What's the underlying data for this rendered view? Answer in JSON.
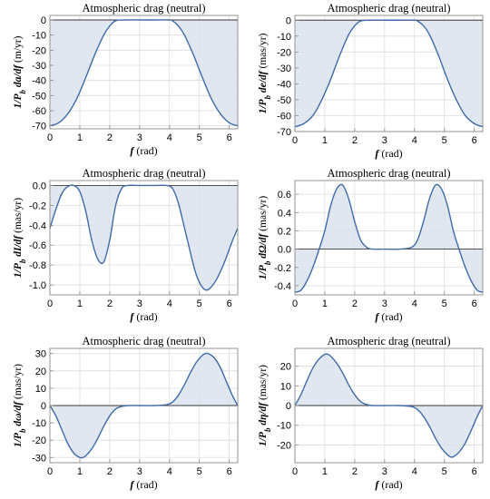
{
  "chart_data": [
    {
      "type": "area",
      "title": "Atmospheric drag (neutral)",
      "xlabel": {
        "symbol": "f",
        "unit": "(rad)"
      },
      "ylabel": {
        "prefix": "1/P",
        "sub": "b",
        "expr": " da/df",
        "unit": " (m/yr)"
      },
      "xlim": [
        0,
        6.2832
      ],
      "ylim": [
        -72,
        3
      ],
      "xticks": [
        0,
        1,
        2,
        3,
        4,
        5,
        6
      ],
      "yticks": [
        0,
        -10,
        -20,
        -30,
        -40,
        -50,
        -60,
        -70
      ],
      "grid": true,
      "series": [
        {
          "x": [
            0,
            0.3,
            0.6,
            0.9,
            1.2,
            1.5,
            1.8,
            2.0,
            2.2,
            2.5,
            3.0,
            3.5,
            4.0,
            4.1,
            4.3,
            4.5,
            4.8,
            5.1,
            5.4,
            5.7,
            6.0,
            6.2832
          ],
          "y": [
            -70,
            -68,
            -62,
            -52,
            -38,
            -23,
            -10,
            -4,
            -0.5,
            0,
            0,
            0,
            0,
            -0.5,
            -4,
            -10,
            -23,
            -38,
            -52,
            -62,
            -68,
            -70
          ]
        }
      ]
    },
    {
      "type": "area",
      "title": "Atmospheric drag (neutral)",
      "xlabel": {
        "symbol": "f",
        "unit": "(rad)"
      },
      "ylabel": {
        "prefix": "1/P",
        "sub": "b",
        "expr": " de/df",
        "unit": " (mas/yr)"
      },
      "xlim": [
        0,
        6.2832
      ],
      "ylim": [
        -70,
        3
      ],
      "xticks": [
        0,
        1,
        2,
        3,
        4,
        5,
        6
      ],
      "yticks": [
        0,
        -10,
        -20,
        -30,
        -40,
        -50,
        -60,
        -70
      ],
      "grid": true,
      "series": [
        {
          "x": [
            0,
            0.3,
            0.6,
            0.9,
            1.2,
            1.5,
            1.8,
            2.0,
            2.2,
            2.5,
            3.0,
            3.5,
            4.0,
            4.1,
            4.3,
            4.5,
            4.8,
            5.1,
            5.4,
            5.7,
            6.0,
            6.2832
          ],
          "y": [
            -67,
            -65,
            -60,
            -50,
            -37,
            -22,
            -9,
            -3.5,
            -0.5,
            0,
            0,
            0,
            0,
            -0.5,
            -3.5,
            -9,
            -22,
            -37,
            -50,
            -60,
            -65,
            -67
          ]
        }
      ]
    },
    {
      "type": "area",
      "title": "Atmospheric drag (neutral)",
      "xlabel": {
        "symbol": "f",
        "unit": "(rad)"
      },
      "ylabel": {
        "prefix": "1/P",
        "sub": "b",
        "expr": " dI/df",
        "unit": " (mas/yr)"
      },
      "xlim": [
        0,
        6.2832
      ],
      "ylim": [
        -1.1,
        0.05
      ],
      "xticks": [
        0,
        1,
        2,
        3,
        4,
        5,
        6
      ],
      "yticks": [
        0.0,
        -0.2,
        -0.4,
        -0.6,
        -0.8,
        -1.0
      ],
      "ytick_labels": [
        "0.0",
        "-0.2",
        "-0.4",
        "-0.6",
        "-0.8",
        "-1.0"
      ],
      "grid": true,
      "series": [
        {
          "x": [
            0,
            0.2,
            0.4,
            0.6,
            0.8,
            1.0,
            1.2,
            1.4,
            1.6,
            1.8,
            2.0,
            2.2,
            2.4,
            2.6,
            3.0,
            3.5,
            3.9,
            4.1,
            4.3,
            4.6,
            4.9,
            5.2,
            5.5,
            5.8,
            6.1,
            6.2832
          ],
          "y": [
            -0.43,
            -0.24,
            -0.08,
            -0.01,
            0,
            -0.06,
            -0.26,
            -0.55,
            -0.74,
            -0.77,
            -0.55,
            -0.2,
            -0.03,
            0,
            0,
            0,
            0,
            -0.03,
            -0.18,
            -0.55,
            -0.9,
            -1.05,
            -0.98,
            -0.8,
            -0.56,
            -0.43
          ]
        }
      ]
    },
    {
      "type": "area",
      "title": "Atmospheric drag (neutral)",
      "xlabel": {
        "symbol": "f",
        "unit": "(rad)"
      },
      "ylabel": {
        "prefix": "1/P",
        "sub": "b",
        "expr": " dΩ/df",
        "unit": " (mas/yr)"
      },
      "xlim": [
        0,
        6.2832
      ],
      "ylim": [
        -0.5,
        0.75
      ],
      "xticks": [
        0,
        1,
        2,
        3,
        4,
        5,
        6
      ],
      "yticks": [
        0.6,
        0.4,
        0.2,
        0.0,
        -0.2,
        -0.4
      ],
      "ytick_labels": [
        "0.6",
        "0.4",
        "0.2",
        "0.0",
        "-0.2",
        "-0.4"
      ],
      "grid": true,
      "series": [
        {
          "x": [
            0,
            0.2,
            0.4,
            0.6,
            0.8,
            1.0,
            1.2,
            1.4,
            1.6,
            1.8,
            2.0,
            2.2,
            2.4,
            2.6,
            3.0,
            3.5,
            3.9,
            4.1,
            4.3,
            4.5,
            4.7,
            4.9,
            5.1,
            5.3,
            5.5,
            5.7,
            5.9,
            6.1,
            6.2832
          ],
          "y": [
            -0.47,
            -0.45,
            -0.35,
            -0.2,
            -0.01,
            0.2,
            0.48,
            0.66,
            0.7,
            0.55,
            0.3,
            0.1,
            0.02,
            0,
            0,
            0,
            0.02,
            0.1,
            0.3,
            0.55,
            0.7,
            0.66,
            0.48,
            0.2,
            -0.01,
            -0.2,
            -0.35,
            -0.45,
            -0.47
          ]
        }
      ]
    },
    {
      "type": "area",
      "title": "Atmospheric drag (neutral)",
      "xlabel": {
        "symbol": "f",
        "unit": "(rad)"
      },
      "ylabel": {
        "prefix": "1/P",
        "sub": "b",
        "expr": " dω/df",
        "unit": " (mas/yr)"
      },
      "xlim": [
        0,
        6.2832
      ],
      "ylim": [
        -33,
        33
      ],
      "xticks": [
        0,
        1,
        2,
        3,
        4,
        5,
        6
      ],
      "yticks": [
        30,
        20,
        10,
        0,
        -10,
        -20,
        -30
      ],
      "grid": true,
      "series": [
        {
          "x": [
            0,
            0.2,
            0.4,
            0.6,
            0.8,
            1.0,
            1.1,
            1.2,
            1.4,
            1.6,
            1.8,
            2.0,
            2.2,
            2.4,
            2.6,
            3.0,
            3.5,
            3.9,
            4.1,
            4.3,
            4.5,
            4.7,
            4.9,
            5.1,
            5.2,
            5.3,
            5.5,
            5.7,
            5.9,
            6.1,
            6.2832
          ],
          "y": [
            0,
            -6,
            -14,
            -22,
            -27.5,
            -30,
            -30,
            -29,
            -25,
            -19,
            -12,
            -6,
            -2,
            -0.5,
            0,
            0,
            0,
            0.5,
            2,
            6,
            12,
            19,
            25,
            29,
            30,
            30,
            27.5,
            22,
            14,
            6,
            0
          ]
        }
      ]
    },
    {
      "type": "area",
      "title": "Atmospheric drag (neutral)",
      "xlabel": {
        "symbol": "f",
        "unit": "(rad)"
      },
      "ylabel": {
        "prefix": "1/P",
        "sub": "b",
        "expr": " dη/df",
        "unit": " (mas/yr)"
      },
      "xlim": [
        0,
        6.2832
      ],
      "ylim": [
        -29,
        29
      ],
      "xticks": [
        0,
        1,
        2,
        3,
        4,
        5,
        6
      ],
      "yticks": [
        20,
        10,
        0,
        -10,
        -20
      ],
      "grid": true,
      "series": [
        {
          "x": [
            0,
            0.2,
            0.4,
            0.6,
            0.8,
            1.0,
            1.1,
            1.2,
            1.4,
            1.6,
            1.8,
            2.0,
            2.2,
            2.4,
            2.6,
            3.0,
            3.5,
            3.9,
            4.1,
            4.3,
            4.5,
            4.7,
            4.9,
            5.1,
            5.2,
            5.3,
            5.5,
            5.7,
            5.9,
            6.1,
            6.2832
          ],
          "y": [
            0,
            5.5,
            12.5,
            19,
            23.5,
            26,
            26,
            25,
            21.5,
            16.5,
            10.5,
            5.5,
            2,
            0.5,
            0,
            0,
            0,
            -0.5,
            -2,
            -5.5,
            -10.5,
            -16.5,
            -21.5,
            -25,
            -26,
            -26,
            -23.5,
            -19,
            -12.5,
            -5.5,
            0
          ]
        }
      ]
    }
  ]
}
